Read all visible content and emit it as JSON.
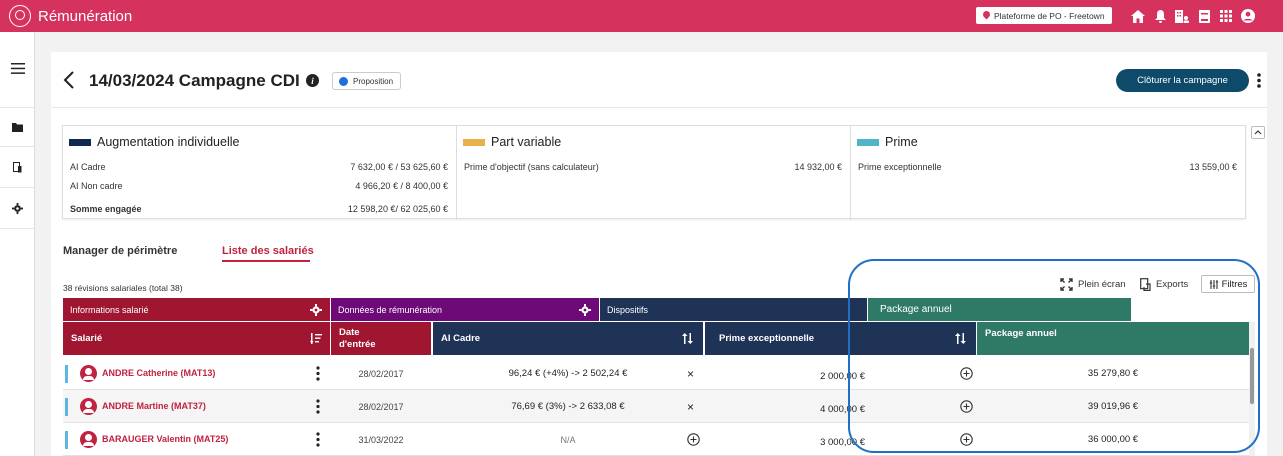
{
  "app": {
    "title": "Rémunération",
    "platform": "Plateforme de PO - Freetown"
  },
  "colors": {
    "brand": "#d6325e",
    "group_info": "#a01530",
    "group_remun": "#6d0a78",
    "group_dispositifs": "#1f3357",
    "group_package": "#2f7a66",
    "button": "#0e4a6a"
  },
  "topbar_icons": [
    "home-icon",
    "bell-icon",
    "building-user-icon",
    "book-icon",
    "grid-apps-icon",
    "account-icon"
  ],
  "rail_icons": [
    "menu-icon",
    "folder-icon",
    "document-icon",
    "gear-icon"
  ],
  "header": {
    "title": "14/03/2024 Campagne CDI",
    "status": "Proposition",
    "close_button": "Clôturer la campagne"
  },
  "summary": {
    "individual": {
      "title": "Augmentation individuelle",
      "color": "#102a4e",
      "rows": [
        {
          "label": "AI Cadre",
          "value": "7 632,00 €  / 53 625,60 €"
        },
        {
          "label": "AI Non cadre",
          "value": "4 966,20 €  /  8 400,00 €"
        },
        {
          "label": "Somme engagée",
          "value": "12 598,20 €/ 62 025,60 €"
        }
      ]
    },
    "variable": {
      "title": "Part variable",
      "color": "#e8b04a",
      "rows": [
        {
          "label": "Prime d'objectif (sans calculateur)",
          "value": "14 932,00 €"
        }
      ]
    },
    "prime": {
      "title": "Prime",
      "color": "#4fb6c9",
      "rows": [
        {
          "label": "Prime exceptionnelle",
          "value": "13 559,00 €"
        }
      ]
    }
  },
  "tabs": {
    "manager": "Manager de périmètre",
    "employees": "Liste des salariés"
  },
  "toolbar": {
    "revisions": "38 révisions salariales (total 38)",
    "fullscreen": "Plein écran",
    "exports": "Exports",
    "filters": "Filtres"
  },
  "table": {
    "groups": {
      "info": "Informations salarié",
      "remuneration": "Données de rémunération",
      "dispositifs": "Dispositifs",
      "package": "Package annuel"
    },
    "columns": {
      "employee": "Salarié",
      "entry_date_1": "Date",
      "entry_date_2": "d'entrée",
      "ai_cadre": "AI Cadre",
      "prime": "Prime exceptionnelle",
      "package": "Package annuel"
    },
    "rows": [
      {
        "name": "ANDRE Catherine (MAT13)",
        "date": "28/02/2017",
        "ai": "96,24 € (+4%) -> 2 502,24 €",
        "ai_action": "×",
        "prime": "2 000,00 €",
        "package": "35 279,80 €"
      },
      {
        "name": "ANDRE Martine (MAT37)",
        "date": "28/02/2017",
        "ai": "76,69 € (3%) -> 2 633,08 €",
        "ai_action": "×",
        "prime": "4 000,00 €",
        "package": "39 019,96 €"
      },
      {
        "name": "BARAUGER Valentin (MAT25)",
        "date": "31/03/2022",
        "ai": "N/A",
        "ai_action": "+",
        "prime": "3 000,00 €",
        "package": "36 000,00 €"
      }
    ]
  }
}
